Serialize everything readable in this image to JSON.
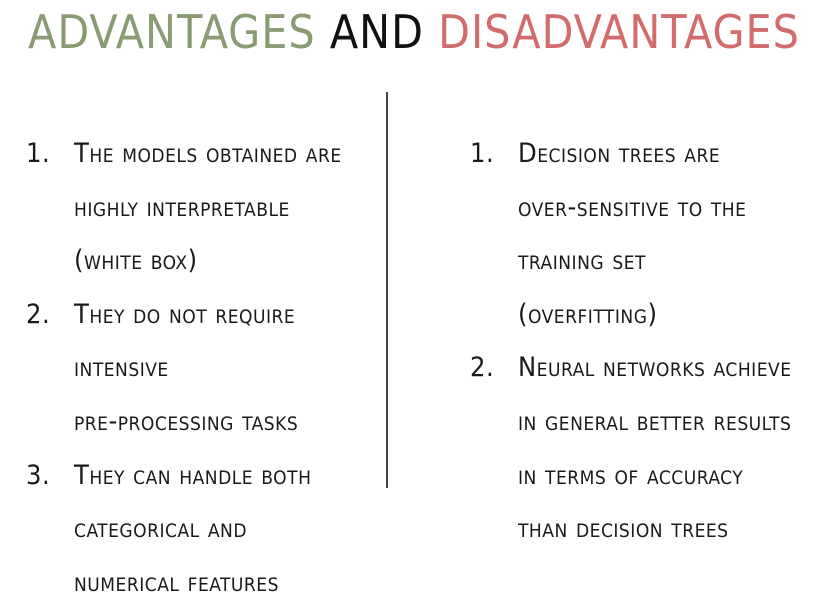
{
  "title": {
    "advantages": "ADVANTAGES",
    "and": "AND",
    "disadvantages": "DISADVANTAGES",
    "colors": {
      "advantages": "#8a9a72",
      "and": "#111111",
      "disadvantages": "#d26c6c"
    }
  },
  "advantages": [
    {
      "number": "1.",
      "lines": [
        "The models obtained are",
        "highly interpretable",
        "(white box)"
      ]
    },
    {
      "number": "2.",
      "lines": [
        "They do not require",
        "intensive",
        "pre-processing tasks"
      ]
    },
    {
      "number": "3.",
      "lines": [
        "They can handle both",
        "categorical and",
        "numerical features"
      ]
    }
  ],
  "disadvantages": [
    {
      "number": "1.",
      "lines": [
        "Decision trees are",
        "over-sensitive to the",
        "training set",
        "(overfitting)"
      ]
    },
    {
      "number": "2.",
      "lines": [
        "Neural networks achieve",
        "in general better results",
        "in terms of accuracy",
        "than decision trees"
      ]
    }
  ]
}
